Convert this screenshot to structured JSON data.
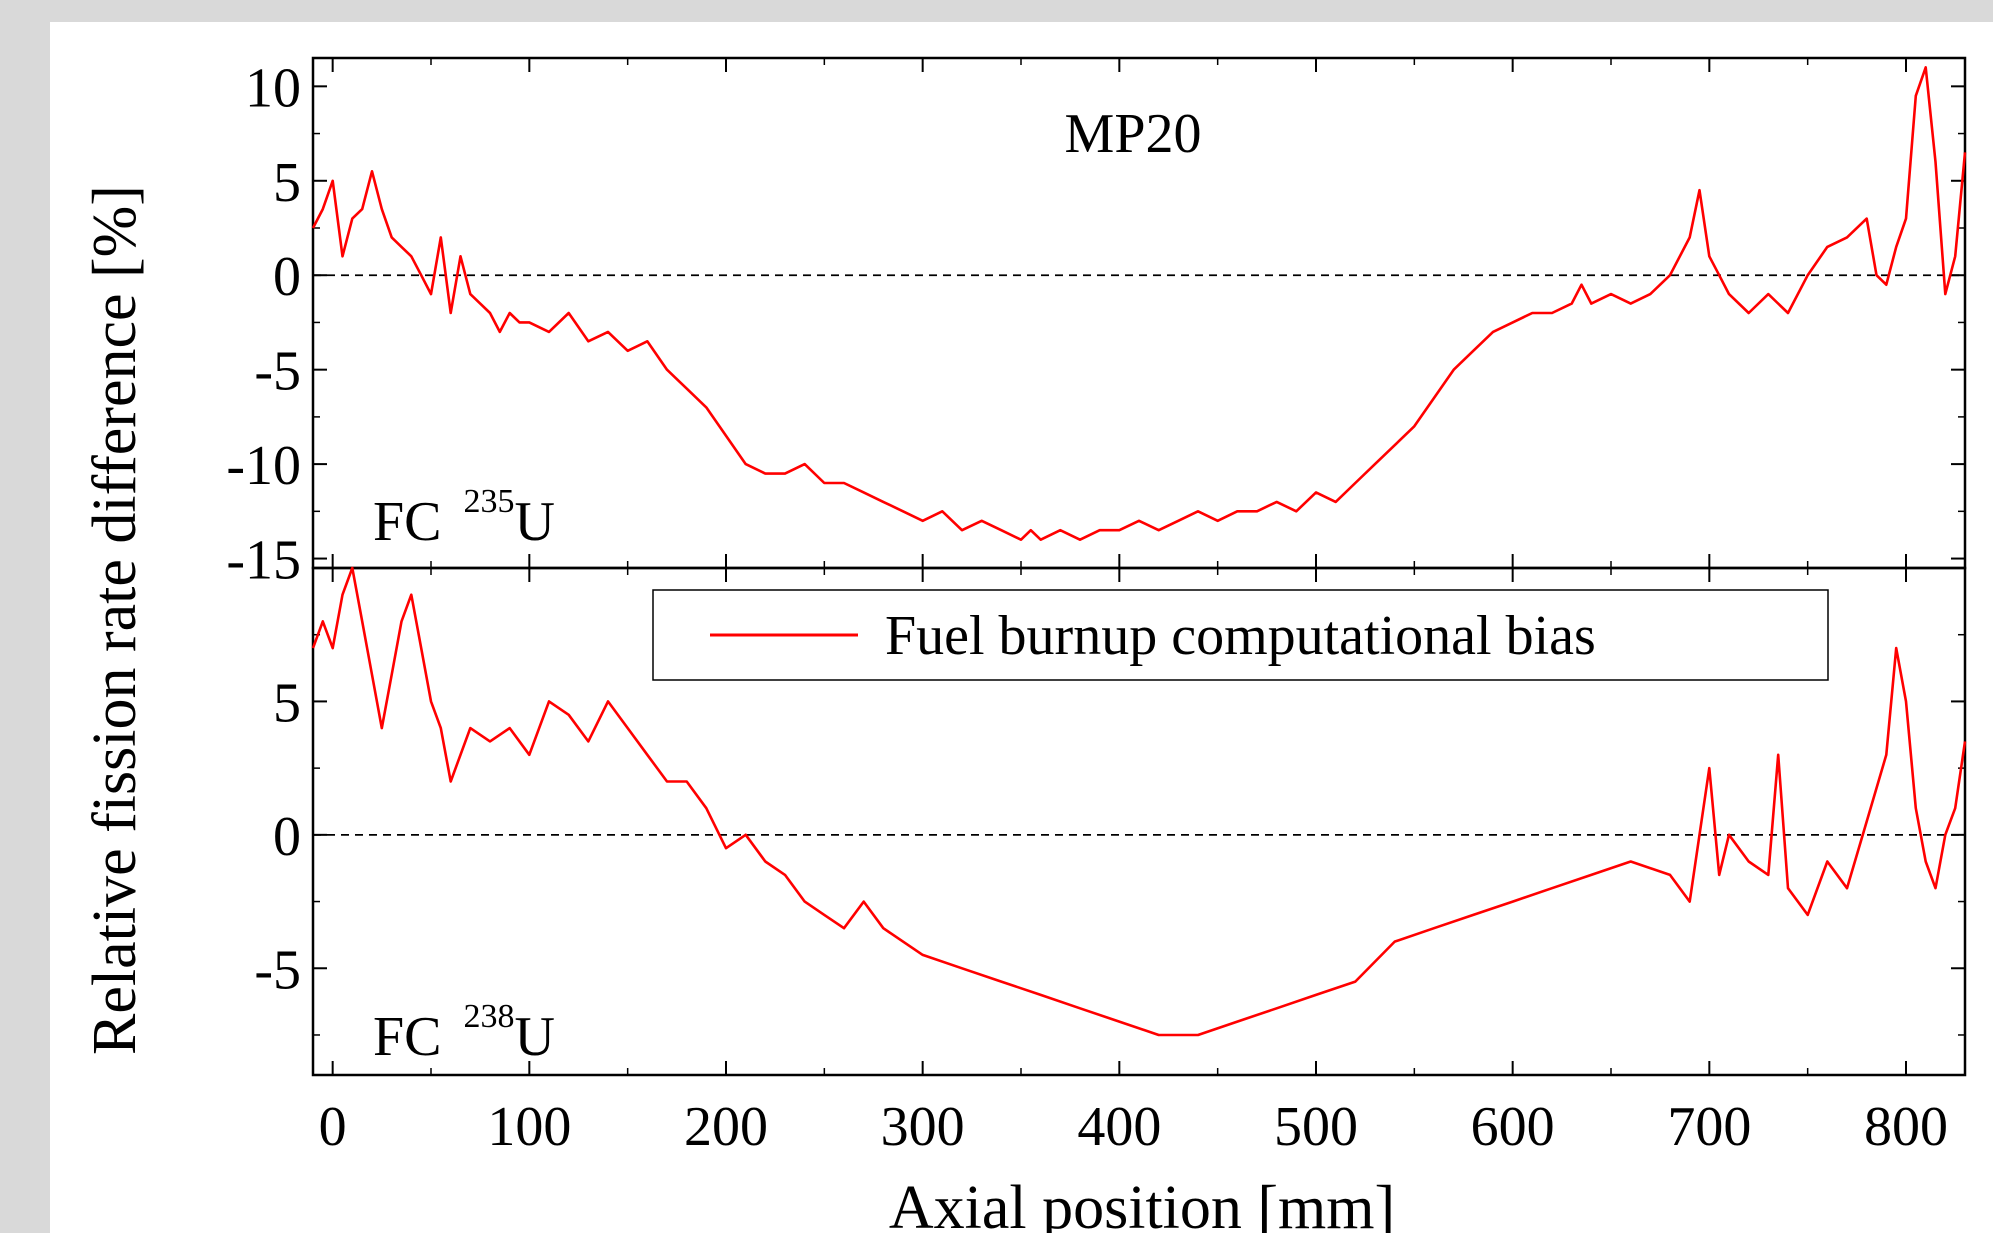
{
  "figure": {
    "ylabel": "Relative fission rate difference [%]",
    "xlabel": "Axial position [mm]",
    "legend_label": "Fuel burnup computational bias",
    "top_title": "MP20",
    "top_panel_label": "FC",
    "top_panel_isotope_mass": "235",
    "top_panel_isotope_symbol": "U",
    "bottom_panel_label": "FC",
    "bottom_panel_isotope_mass": "238",
    "bottom_panel_isotope_symbol": "U"
  },
  "chart_data": [
    {
      "type": "line",
      "title": "MP20",
      "annotation": "FC 235U",
      "xlabel": "Axial position [mm]",
      "ylabel": "Relative fission rate difference [%]",
      "xlim": [
        -10,
        830
      ],
      "ylim": [
        -15.5,
        11.5
      ],
      "xticks": [
        0,
        100,
        200,
        300,
        400,
        500,
        600,
        700,
        800
      ],
      "yticks": [
        -15,
        -10,
        -5,
        0,
        5,
        10
      ],
      "reference_line": 0,
      "legend": "none",
      "series": [
        {
          "name": "Fuel burnup computational bias",
          "color": "#ff0000",
          "x": [
            -10,
            -5,
            0,
            5,
            10,
            15,
            20,
            25,
            30,
            35,
            40,
            45,
            50,
            55,
            60,
            65,
            70,
            75,
            80,
            85,
            90,
            95,
            100,
            110,
            120,
            130,
            140,
            150,
            160,
            170,
            180,
            190,
            200,
            210,
            220,
            230,
            240,
            250,
            260,
            270,
            280,
            290,
            300,
            310,
            320,
            330,
            340,
            350,
            355,
            360,
            370,
            380,
            390,
            400,
            410,
            420,
            430,
            440,
            450,
            460,
            470,
            480,
            490,
            500,
            510,
            520,
            530,
            540,
            550,
            560,
            570,
            580,
            590,
            600,
            610,
            620,
            630,
            635,
            640,
            650,
            660,
            670,
            680,
            690,
            695,
            700,
            705,
            710,
            720,
            730,
            740,
            750,
            760,
            770,
            780,
            785,
            790,
            795,
            800,
            805,
            810,
            815,
            820,
            825,
            830
          ],
          "y": [
            2.5,
            3.5,
            5.0,
            1.0,
            3.0,
            3.5,
            5.5,
            3.5,
            2.0,
            1.5,
            1.0,
            0.0,
            -1.0,
            2.0,
            -2.0,
            1.0,
            -1.0,
            -1.5,
            -2.0,
            -3.0,
            -2.0,
            -2.5,
            -2.5,
            -3.0,
            -2.0,
            -3.5,
            -3.0,
            -4.0,
            -3.5,
            -5.0,
            -6.0,
            -7.0,
            -8.5,
            -10.0,
            -10.5,
            -10.5,
            -10.0,
            -11.0,
            -11.0,
            -11.5,
            -12.0,
            -12.5,
            -13.0,
            -12.5,
            -13.5,
            -13.0,
            -13.5,
            -14.0,
            -13.5,
            -14.0,
            -13.5,
            -14.0,
            -13.5,
            -13.5,
            -13.0,
            -13.5,
            -13.0,
            -12.5,
            -13.0,
            -12.5,
            -12.5,
            -12.0,
            -12.5,
            -11.5,
            -12.0,
            -11.0,
            -10.0,
            -9.0,
            -8.0,
            -6.5,
            -5.0,
            -4.0,
            -3.0,
            -2.5,
            -2.0,
            -2.0,
            -1.5,
            -0.5,
            -1.5,
            -1.0,
            -1.5,
            -1.0,
            0.0,
            2.0,
            4.5,
            1.0,
            0.0,
            -1.0,
            -2.0,
            -1.0,
            -2.0,
            0.0,
            1.5,
            2.0,
            3.0,
            0.0,
            -0.5,
            1.5,
            3.0,
            9.5,
            11.0,
            6.0,
            -1.0,
            1.0,
            6.5
          ]
        }
      ]
    },
    {
      "type": "line",
      "annotation": "FC 238U",
      "xlabel": "Axial position [mm]",
      "ylabel": "Relative fission rate difference [%]",
      "xlim": [
        -10,
        830
      ],
      "ylim": [
        -9,
        10
      ],
      "xticks": [
        0,
        100,
        200,
        300,
        400,
        500,
        600,
        700,
        800
      ],
      "yticks": [
        -5,
        0,
        5
      ],
      "reference_line": 0,
      "legend": "top-right",
      "series": [
        {
          "name": "Fuel burnup computational bias",
          "color": "#ff0000",
          "x": [
            -10,
            -5,
            0,
            5,
            10,
            15,
            20,
            25,
            30,
            35,
            40,
            45,
            50,
            55,
            60,
            70,
            80,
            90,
            100,
            110,
            120,
            130,
            140,
            150,
            160,
            170,
            180,
            190,
            200,
            210,
            220,
            230,
            240,
            250,
            260,
            270,
            280,
            290,
            300,
            320,
            340,
            360,
            380,
            400,
            420,
            440,
            460,
            480,
            500,
            520,
            540,
            560,
            580,
            600,
            620,
            640,
            660,
            680,
            690,
            700,
            705,
            710,
            720,
            730,
            735,
            740,
            750,
            760,
            770,
            780,
            790,
            795,
            800,
            805,
            810,
            815,
            820,
            825,
            830
          ],
          "y": [
            7.0,
            8.0,
            7.0,
            9.0,
            10.0,
            8.0,
            6.0,
            4.0,
            6.0,
            8.0,
            9.0,
            7.0,
            5.0,
            4.0,
            2.0,
            4.0,
            3.5,
            4.0,
            3.0,
            5.0,
            4.5,
            3.5,
            5.0,
            4.0,
            3.0,
            2.0,
            2.0,
            1.0,
            -0.5,
            0.0,
            -1.0,
            -1.5,
            -2.5,
            -3.0,
            -3.5,
            -2.5,
            -3.5,
            -4.0,
            -4.5,
            -5.0,
            -5.5,
            -6.0,
            -6.5,
            -7.0,
            -7.5,
            -7.5,
            -7.0,
            -6.5,
            -6.0,
            -5.5,
            -4.0,
            -3.5,
            -3.0,
            -2.5,
            -2.0,
            -1.5,
            -1.0,
            -1.5,
            -2.5,
            2.5,
            -1.5,
            0.0,
            -1.0,
            -1.5,
            3.0,
            -2.0,
            -3.0,
            -1.0,
            -2.0,
            0.5,
            3.0,
            7.0,
            5.0,
            1.0,
            -1.0,
            -2.0,
            0.0,
            1.0,
            3.5
          ]
        }
      ]
    }
  ]
}
